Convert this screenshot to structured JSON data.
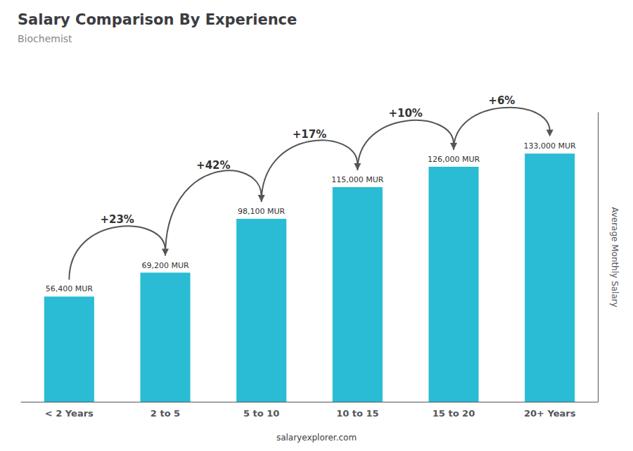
{
  "chart_data": {
    "type": "bar",
    "title": "Salary Comparison By Experience",
    "subtitle": "Biochemist",
    "categories": [
      "< 2 Years",
      "2 to 5",
      "5 to 10",
      "10 to 15",
      "15 to 20",
      "20+ Years"
    ],
    "values": [
      56400,
      69200,
      98100,
      115000,
      126000,
      133000
    ],
    "value_labels": [
      "56,400 MUR",
      "69,200 MUR",
      "98,100 MUR",
      "115,000 MUR",
      "126,000 MUR",
      "133,000 MUR"
    ],
    "data_labels": true,
    "color": "#29BCD4",
    "ylabel": "Average Monthly Salary",
    "ylim": [
      0,
      155000
    ],
    "yticks": [],
    "tick_labels": "x",
    "grid": false,
    "annotations": [
      {
        "text": "+23%",
        "from": "< 2 Years",
        "to": "2 to 5"
      },
      {
        "text": "+42%",
        "from": "2 to 5",
        "to": "5 to 10"
      },
      {
        "text": "+17%",
        "from": "5 to 10",
        "to": "10 to 15"
      },
      {
        "text": "+10%",
        "from": "10 to 15",
        "to": "15 to 20"
      },
      {
        "text": "+6%",
        "from": "15 to 20",
        "to": "20+ Years"
      }
    ],
    "footer": "salaryexplorer.com"
  }
}
